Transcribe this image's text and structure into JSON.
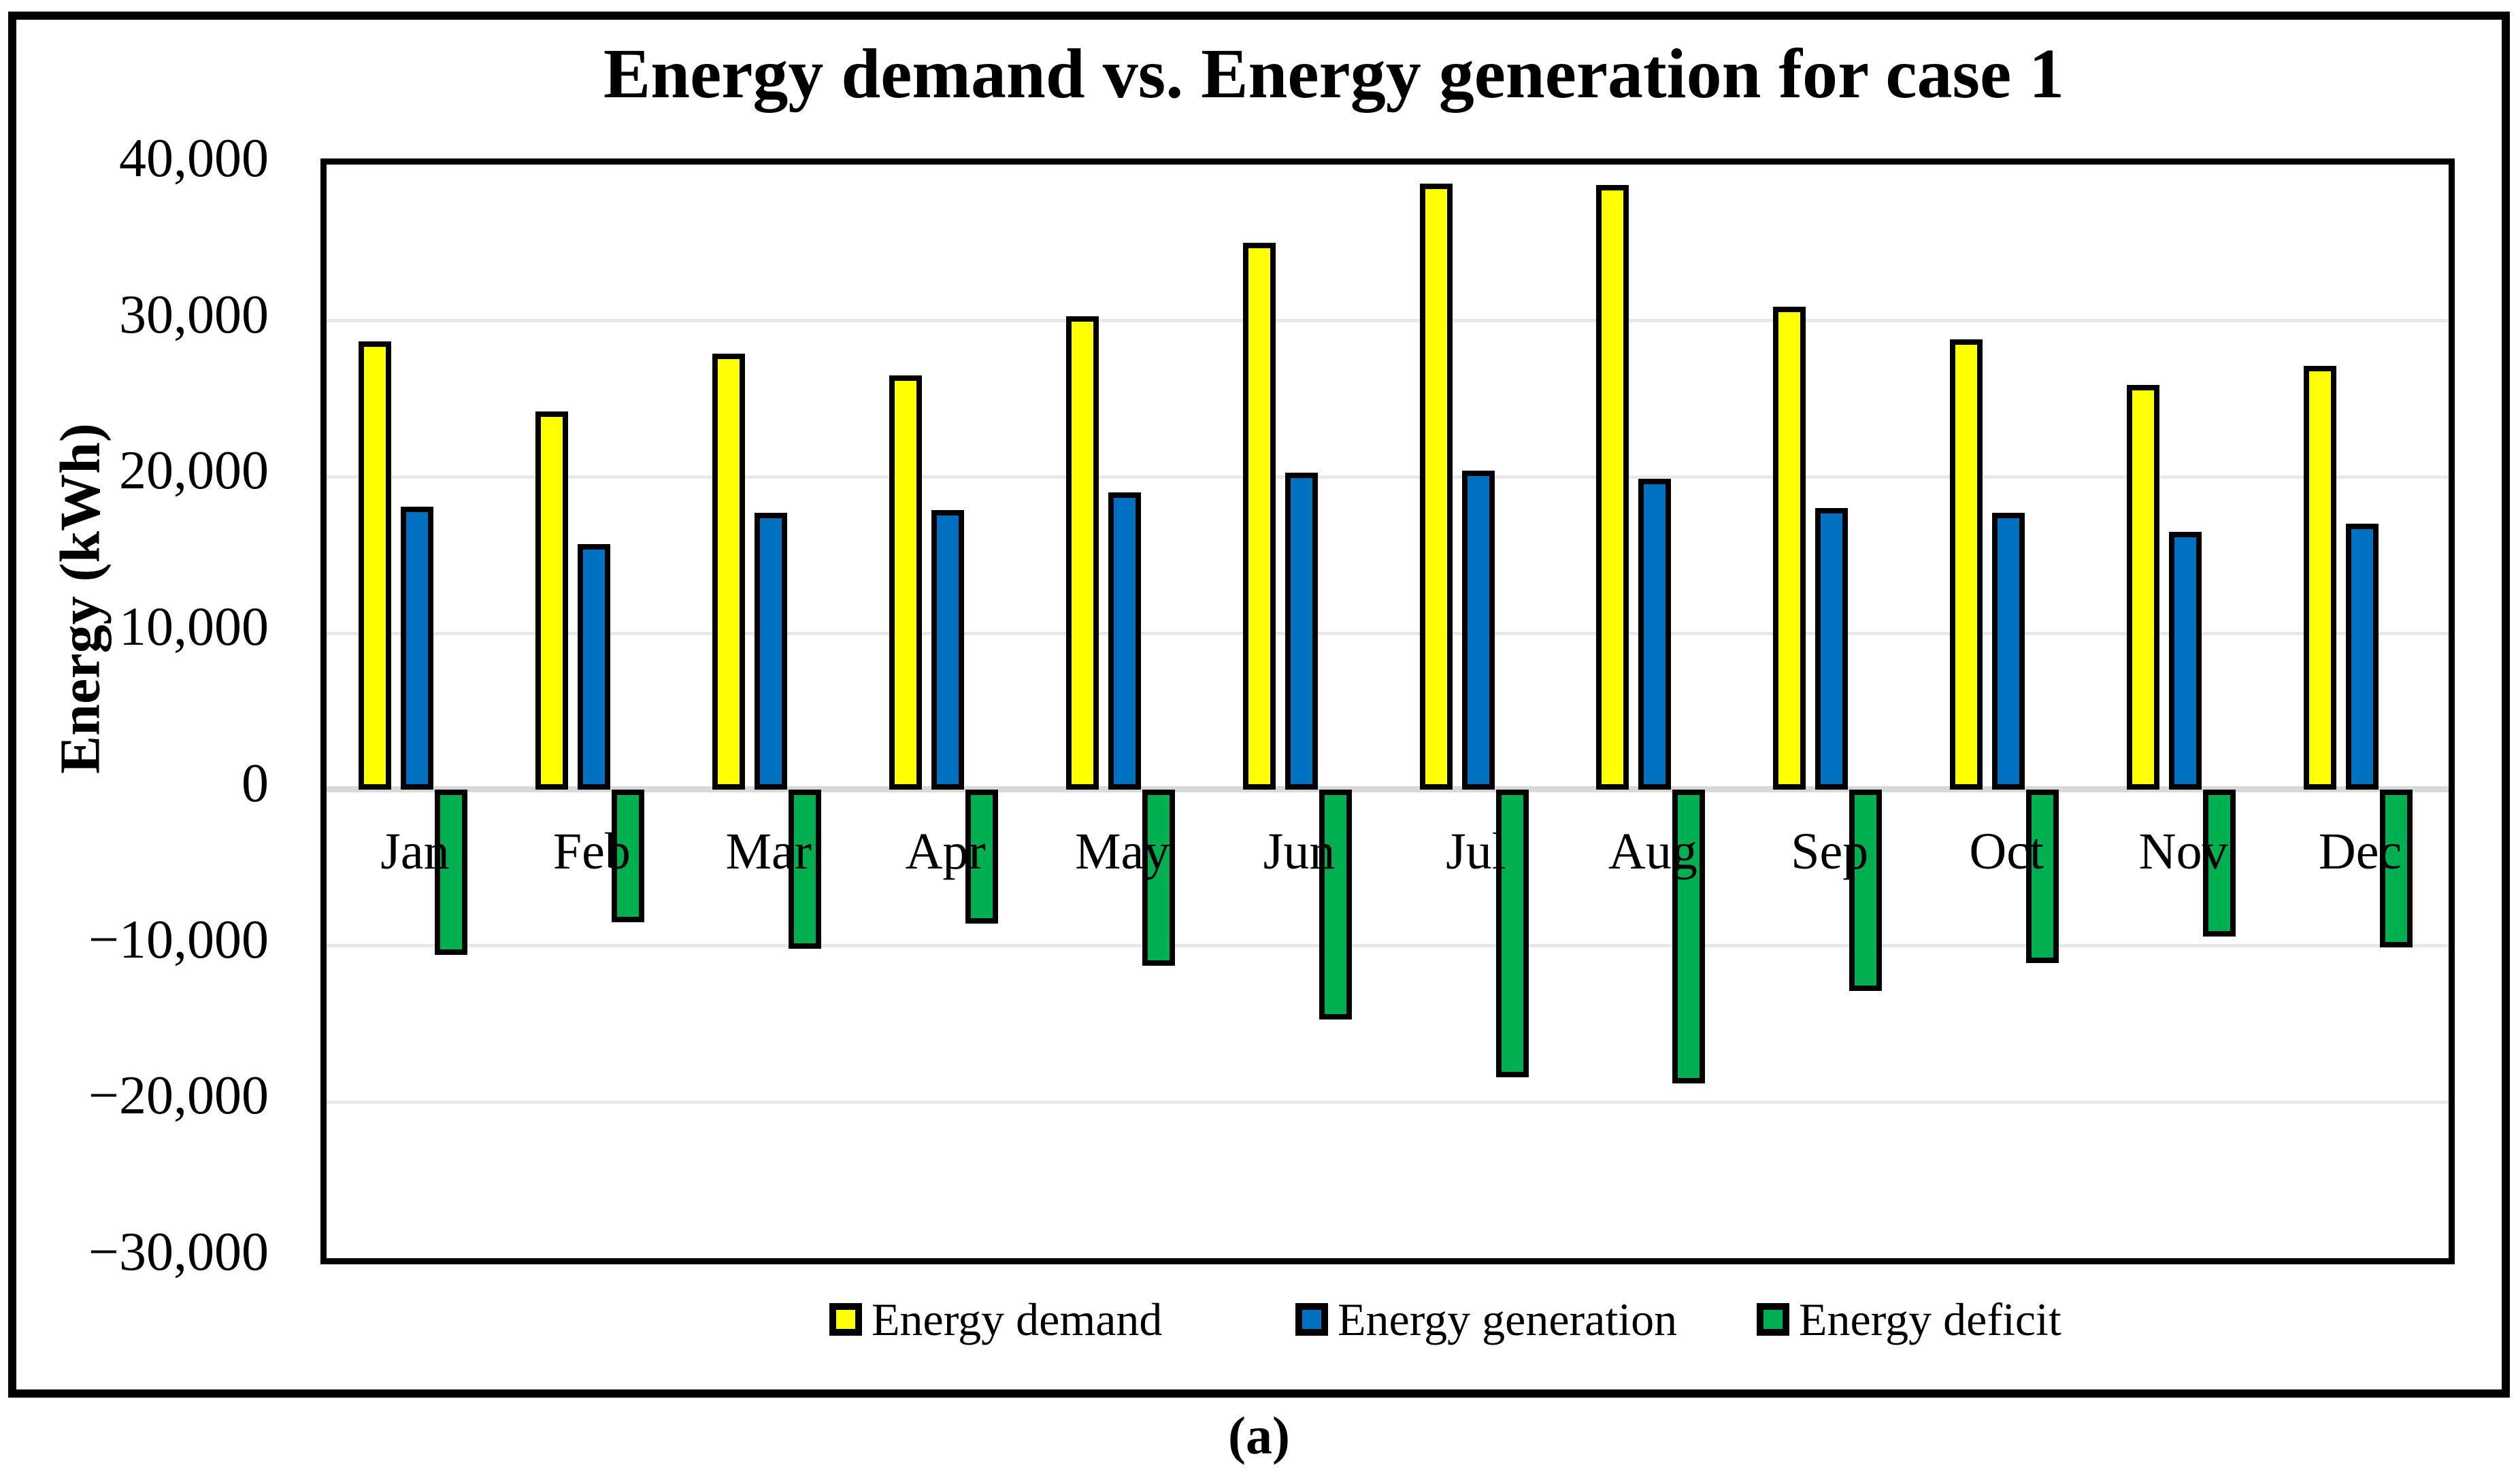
{
  "figure": {
    "title": "Energy demand vs. Energy generation for case 1",
    "caption": "(a)"
  },
  "y_axis": {
    "label": "Energy (kWh)",
    "ticks": [
      "40,000",
      "30,000",
      "20,000",
      "10,000",
      "0",
      "−10,000",
      "−20,000",
      "−30,000"
    ],
    "tick_values": [
      40000,
      30000,
      20000,
      10000,
      0,
      -10000,
      -20000,
      -30000
    ]
  },
  "legend": [
    {
      "label": "Energy demand",
      "color": "#FFFF00"
    },
    {
      "label": "Energy generation",
      "color": "#0070C0"
    },
    {
      "label": "Energy deficit",
      "color": "#00B050"
    }
  ],
  "colors": {
    "bar_outline": "#000000",
    "gridline": "#E8E8E8",
    "zero_line": "#D9D9D9",
    "axis": "#000000",
    "background": "#FFFFFF"
  },
  "chart_data": {
    "type": "bar",
    "title": "Energy demand vs. Energy generation for case 1",
    "xlabel": "",
    "ylabel": "Energy (kWh)",
    "ylim": [
      -30000,
      40000
    ],
    "ytick_step": 10000,
    "grid": true,
    "legend_position": "bottom",
    "categories": [
      "Jan",
      "Feb",
      "Mar",
      "Apr",
      "May",
      "Jun",
      "Jul",
      "Aug",
      "Sep",
      "Oct",
      "Nov",
      "Dec"
    ],
    "series": [
      {
        "name": "Energy demand",
        "color": "#FFFF00",
        "values": [
          28700,
          24200,
          27900,
          26500,
          30300,
          35000,
          38800,
          38700,
          30900,
          28800,
          25900,
          27100
        ]
      },
      {
        "name": "Energy generation",
        "color": "#0070C0",
        "values": [
          18100,
          15700,
          17700,
          17900,
          19000,
          20300,
          20400,
          19900,
          18000,
          17700,
          16500,
          17000
        ]
      },
      {
        "name": "Energy deficit",
        "color": "#00B050",
        "values": [
          -10600,
          -8500,
          -10200,
          -8600,
          -11300,
          -14700,
          -18400,
          -18800,
          -12900,
          -11100,
          -9400,
          -10100
        ]
      }
    ]
  }
}
